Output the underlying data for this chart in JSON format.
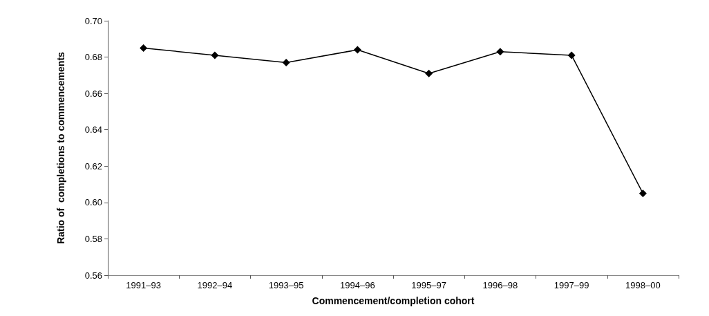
{
  "chart_data": {
    "type": "line",
    "xlabel": "Commencement/completion cohort",
    "ylabel": "Ratio of  completions to commencements",
    "categories": [
      "1991–93",
      "1992–94",
      "1993–95",
      "1994–96",
      "1995–97",
      "1996–98",
      "1997–99",
      "1998–00"
    ],
    "series": [
      {
        "color": "#000000",
        "values": [
          0.685,
          0.681,
          0.677,
          0.684,
          0.671,
          0.683,
          0.681,
          0.605
        ]
      }
    ],
    "ylim": [
      0.56,
      0.7
    ],
    "yticks": [
      0.56,
      0.58,
      {
        "value": 0.6,
        "label": "0.60"
      },
      0.62,
      0.64,
      0.66,
      0.68,
      {
        "value": 0.7,
        "label": "0.70"
      }
    ],
    "grid": false,
    "marker": "diamond",
    "line_style": "solid"
  }
}
